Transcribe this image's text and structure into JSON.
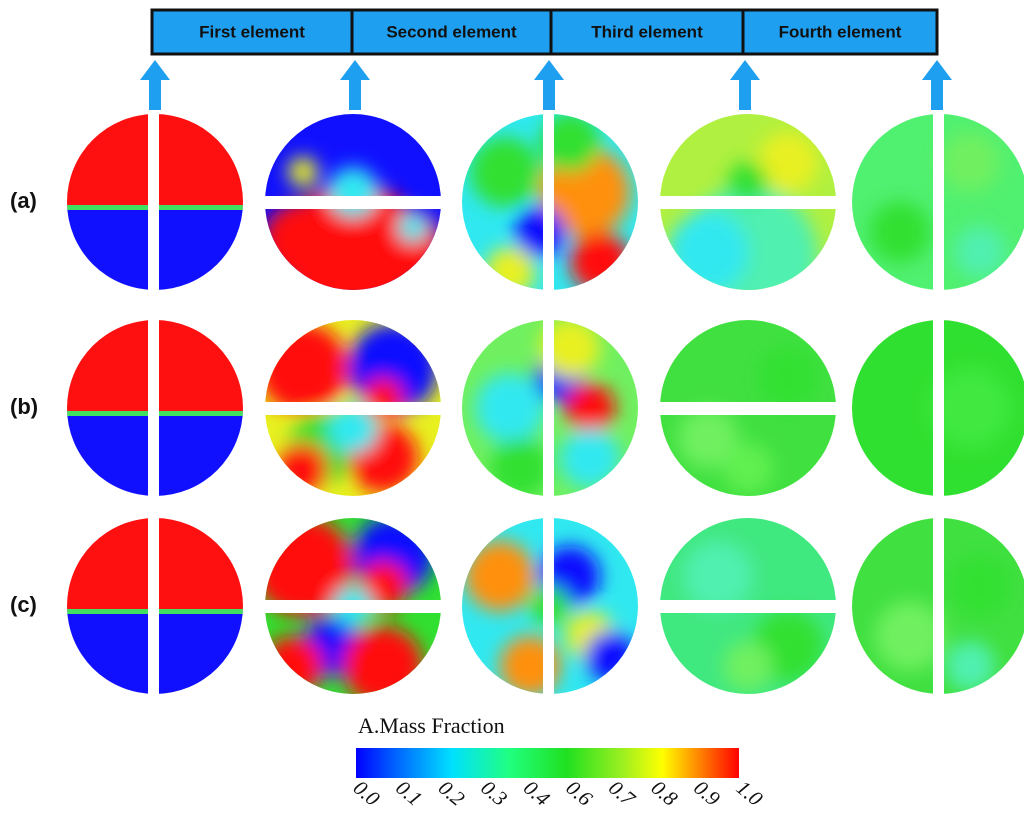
{
  "header": {
    "elements": [
      "First  element",
      "Second  element",
      "Third  element",
      "Fourth  element"
    ]
  },
  "rows": {
    "labels": [
      "(a)",
      "(b)",
      "(c)"
    ]
  },
  "colorbar": {
    "title": "A.Mass Fraction",
    "labels": [
      "0.0",
      "0.1",
      "0.2",
      "0.3",
      "0.4",
      "0.6",
      "0.7",
      "0.8",
      "0.9",
      "1.0"
    ]
  }
}
